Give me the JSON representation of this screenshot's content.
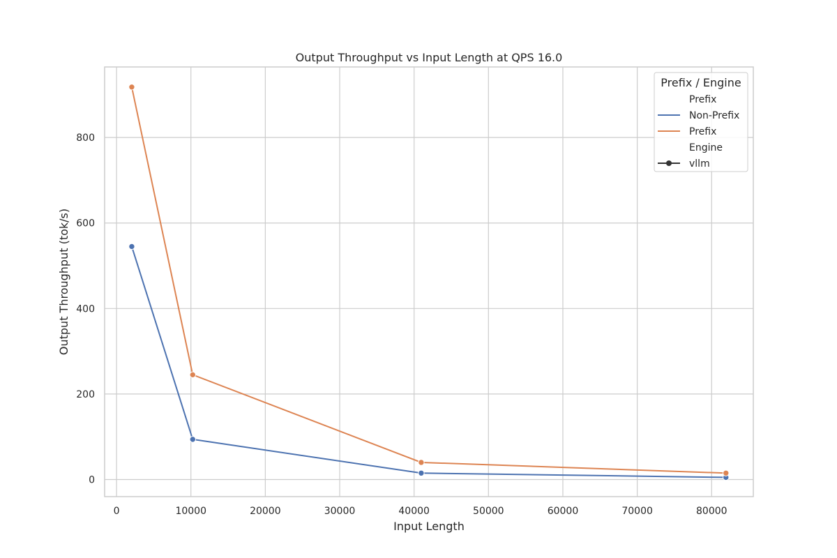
{
  "chart_data": {
    "type": "line",
    "title": "Output Throughput vs Input Length at QPS 16.0",
    "xlabel": "Input Length",
    "ylabel": "Output Throughput (tok/s)",
    "xlim": [
      -1600,
      85600
    ],
    "ylim": [
      -40,
      965
    ],
    "xticks": [
      0,
      10000,
      20000,
      30000,
      40000,
      50000,
      60000,
      70000,
      80000
    ],
    "yticks": [
      0,
      200,
      400,
      600,
      800
    ],
    "grid": true,
    "legend_placement": "top-right",
    "legend": {
      "title": "Prefix / Engine",
      "sections": [
        {
          "heading": "Prefix",
          "entries": [
            {
              "label": "Non-Prefix",
              "color": "#4c72b0",
              "marker": false
            },
            {
              "label": "Prefix",
              "color": "#dd8452",
              "marker": false
            }
          ]
        },
        {
          "heading": "Engine",
          "entries": [
            {
              "label": "vllm",
              "color": "#333333",
              "marker": true
            }
          ]
        }
      ]
    },
    "series": [
      {
        "name": "Non-Prefix",
        "color": "#4c72b0",
        "x": [
          2048,
          10240,
          40960,
          81920
        ],
        "y": [
          545,
          94,
          15,
          5
        ]
      },
      {
        "name": "Prefix",
        "color": "#dd8452",
        "x": [
          2048,
          10240,
          40960,
          81920
        ],
        "y": [
          918,
          245,
          40,
          15
        ]
      }
    ]
  }
}
